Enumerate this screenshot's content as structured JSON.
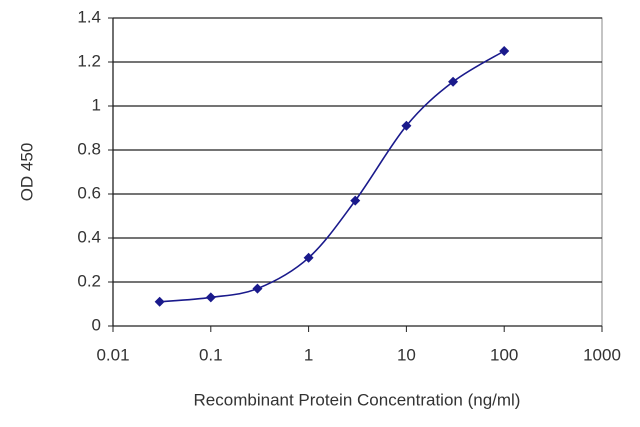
{
  "chart_data": {
    "type": "line",
    "x_label": "Recombinant Protein Concentration (ng/ml)",
    "y_label": "OD 450",
    "x": [
      0.03,
      0.1,
      0.3,
      1,
      3,
      10,
      30,
      100
    ],
    "series": [
      {
        "color": "#1a1a8c",
        "values": [
          0.11,
          0.13,
          0.17,
          0.31,
          0.57,
          0.91,
          1.11,
          1.25
        ]
      }
    ],
    "xlim": [
      0.01,
      1000
    ],
    "xticks": [
      0.01,
      0.1,
      1,
      10,
      100,
      1000
    ],
    "x_log": true,
    "ylim": [
      0,
      1.4
    ],
    "yticks": [
      0,
      0.2,
      0.4,
      0.6,
      0.8,
      1,
      1.2,
      1.4
    ],
    "grid": true
  }
}
